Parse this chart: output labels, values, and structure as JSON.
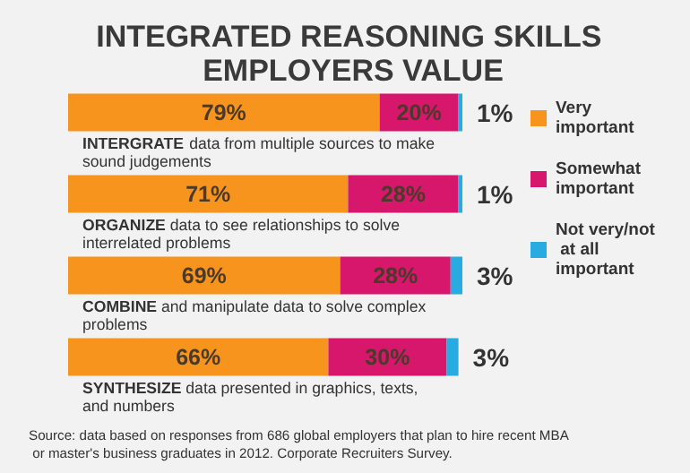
{
  "chart_data": {
    "type": "bar",
    "orientation": "horizontal",
    "stacked": true,
    "legend": "right",
    "title": "INTEGRATED REASONING SKILLS EMPLOYERS VALUE",
    "categories": [
      "INTERGRATE data from multiple sources to make sound judgements",
      "ORGANIZE data to see relationships to solve interrelated problems",
      "COMBINE and manipulate data to solve complex problems",
      "SYNTHESIZE data presented in graphics, texts, and numbers"
    ],
    "series": [
      {
        "name": "Very important",
        "color": "#f7941d",
        "values": [
          79,
          71,
          69,
          66
        ],
        "value_labels": [
          "79%",
          "71%",
          "69%",
          "66%"
        ]
      },
      {
        "name": "Somewhat important",
        "color": "#d6176b",
        "values": [
          20,
          28,
          28,
          30
        ],
        "value_labels": [
          "20%",
          "28%",
          "28%",
          "30%"
        ]
      },
      {
        "name": "Not very/not at all important",
        "color": "#29abe2",
        "values": [
          1,
          1,
          3,
          3
        ],
        "value_labels": [
          "1%",
          "1%",
          "3%",
          "3%"
        ]
      }
    ],
    "annotations": [
      "Source: data based on responses from 686 global employers that plan to hire recent MBA or master's business graduates in 2012. Corporate Recruiters Survey."
    ]
  }
}
